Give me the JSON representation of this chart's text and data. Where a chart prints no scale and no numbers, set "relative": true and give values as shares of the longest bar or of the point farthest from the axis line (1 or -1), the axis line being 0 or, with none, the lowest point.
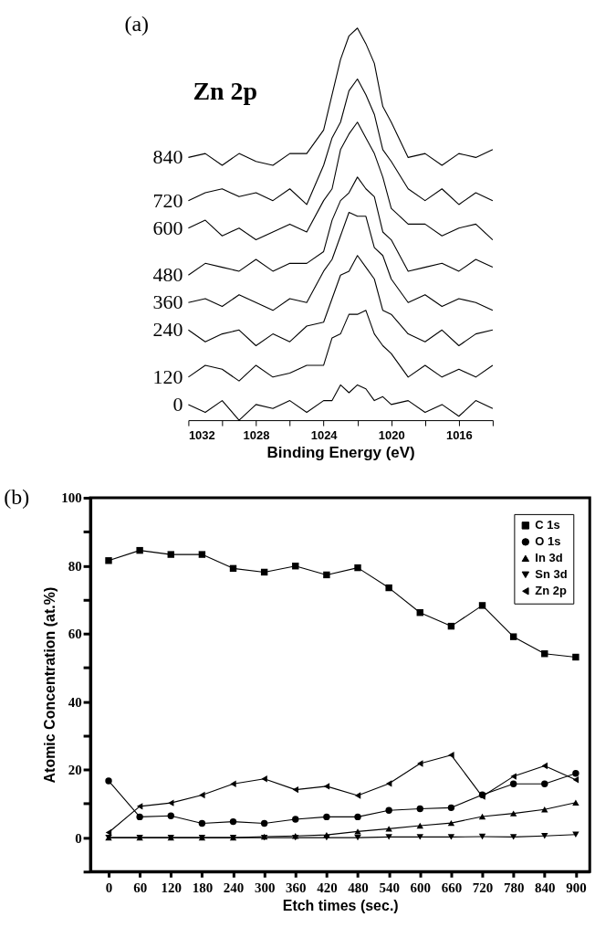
{
  "chart_data": [
    {
      "type": "line",
      "title": "(a)",
      "relative": true,
      "legend": false,
      "xlabel": "Binding Energy (eV)",
      "annotations": [
        "Zn 2p"
      ],
      "xlim": [
        1032,
        1014
      ],
      "xticks": [
        1032,
        {
          "value": 1030,
          "label": null
        },
        1028,
        {
          "value": 1026,
          "label": null
        },
        1024,
        {
          "value": 1022,
          "label": null
        },
        1020,
        {
          "value": 1018,
          "label": null
        },
        1016,
        {
          "value": 1014,
          "label": null
        }
      ],
      "x": [
        1032,
        1031,
        1030,
        1029,
        1028,
        1027,
        1026,
        1025,
        1024,
        1023.5,
        1023,
        1022.5,
        1022,
        1021.5,
        1021,
        1020.5,
        1020,
        1019,
        1018,
        1017,
        1016,
        1015,
        1014
      ],
      "series": [
        {
          "name": "0",
          "color": "#000000",
          "values": [
            0.04,
            0.02,
            0.05,
            0.0,
            0.04,
            0.03,
            0.05,
            0.02,
            0.05,
            0.05,
            0.09,
            0.07,
            0.09,
            0.08,
            0.05,
            0.06,
            0.04,
            0.05,
            0.02,
            0.04,
            0.01,
            0.05,
            0.03
          ]
        },
        {
          "name": "120",
          "color": "#000000",
          "values": [
            0.11,
            0.14,
            0.13,
            0.1,
            0.14,
            0.11,
            0.12,
            0.14,
            0.14,
            0.21,
            0.22,
            0.27,
            0.27,
            0.28,
            0.22,
            0.19,
            0.17,
            0.11,
            0.14,
            0.11,
            0.13,
            0.11,
            0.14
          ]
        },
        {
          "name": "240",
          "color": "#000000",
          "values": [
            0.23,
            0.2,
            0.22,
            0.23,
            0.19,
            0.22,
            0.2,
            0.24,
            0.25,
            0.31,
            0.37,
            0.38,
            0.42,
            0.39,
            0.36,
            0.28,
            0.27,
            0.22,
            0.2,
            0.23,
            0.19,
            0.22,
            0.23
          ]
        },
        {
          "name": "360",
          "color": "#000000",
          "values": [
            0.3,
            0.31,
            0.29,
            0.32,
            0.3,
            0.28,
            0.31,
            0.3,
            0.38,
            0.41,
            0.47,
            0.53,
            0.52,
            0.52,
            0.44,
            0.42,
            0.36,
            0.3,
            0.32,
            0.29,
            0.31,
            0.3,
            0.28
          ]
        },
        {
          "name": "480",
          "color": "#000000",
          "values": [
            0.37,
            0.4,
            0.39,
            0.38,
            0.41,
            0.38,
            0.4,
            0.4,
            0.43,
            0.51,
            0.56,
            0.58,
            0.62,
            0.59,
            0.57,
            0.48,
            0.46,
            0.38,
            0.39,
            0.4,
            0.38,
            0.41,
            0.39
          ]
        },
        {
          "name": "600",
          "color": "#000000",
          "values": [
            0.49,
            0.51,
            0.47,
            0.49,
            0.46,
            0.48,
            0.5,
            0.48,
            0.56,
            0.59,
            0.69,
            0.73,
            0.76,
            0.72,
            0.68,
            0.62,
            0.54,
            0.5,
            0.5,
            0.47,
            0.49,
            0.5,
            0.46
          ]
        },
        {
          "name": "720",
          "color": "#000000",
          "values": [
            0.56,
            0.58,
            0.59,
            0.57,
            0.58,
            0.56,
            0.59,
            0.55,
            0.65,
            0.72,
            0.76,
            0.84,
            0.87,
            0.83,
            0.78,
            0.69,
            0.66,
            0.59,
            0.56,
            0.59,
            0.55,
            0.58,
            0.56
          ]
        },
        {
          "name": "840",
          "color": "#000000",
          "values": [
            0.67,
            0.68,
            0.65,
            0.68,
            0.66,
            0.65,
            0.68,
            0.68,
            0.74,
            0.83,
            0.92,
            0.98,
            1.0,
            0.96,
            0.91,
            0.8,
            0.76,
            0.67,
            0.68,
            0.65,
            0.68,
            0.67,
            0.69
          ]
        }
      ]
    },
    {
      "type": "line",
      "title": "(b)",
      "legend": "top right",
      "grid": false,
      "xlabel": "Etch times (sec.)",
      "ylabel": "Atomic Concentration (at.%)",
      "xlim": [
        -35,
        927
      ],
      "xticks": [
        0,
        60,
        120,
        180,
        240,
        300,
        360,
        420,
        480,
        540,
        600,
        660,
        720,
        780,
        840,
        900
      ],
      "ylim": [
        -10,
        100
      ],
      "yticks": [
        {
          "value": -10,
          "label": null
        },
        0,
        {
          "value": 10,
          "label": null
        },
        20,
        {
          "value": 30,
          "label": null
        },
        40,
        {
          "value": 50,
          "label": null
        },
        60,
        {
          "value": 70,
          "label": null
        },
        80,
        {
          "value": 90,
          "label": null
        },
        100
      ],
      "x": [
        0,
        60,
        120,
        180,
        240,
        300,
        360,
        420,
        480,
        540,
        600,
        660,
        720,
        780,
        840,
        900
      ],
      "series": [
        {
          "name": "C 1s",
          "color": "#000000",
          "marker": "square",
          "values": [
            81.5,
            84.5,
            83.3,
            83.3,
            79.2,
            78.1,
            79.9,
            77.3,
            79.4,
            73.5,
            66.2,
            62.2,
            68.3,
            59.1,
            54.1,
            53.1
          ]
        },
        {
          "name": "O 1s",
          "color": "#000000",
          "marker": "circle",
          "values": [
            16.7,
            6.1,
            6.4,
            4.2,
            4.7,
            4.2,
            5.4,
            6.1,
            6.1,
            8.0,
            8.5,
            8.8,
            12.6,
            15.8,
            15.8,
            18.9
          ]
        },
        {
          "name": "In 3d",
          "color": "#000000",
          "marker": "triangle",
          "values": [
            0,
            0,
            0,
            0,
            0,
            0.3,
            0.5,
            0.8,
            1.8,
            2.6,
            3.5,
            4.3,
            6.2,
            7.1,
            8.3,
            10.3
          ]
        },
        {
          "name": "Sn 3d",
          "color": "#000000",
          "marker": "triangle-down",
          "values": [
            0,
            0,
            0,
            0,
            0,
            0,
            0,
            0,
            0,
            0.2,
            0.2,
            0.2,
            0.3,
            0.2,
            0.5,
            0.9
          ]
        },
        {
          "name": "Zn 2p",
          "color": "#000000",
          "marker": "triangle-left",
          "values": [
            1.5,
            9.2,
            10.2,
            12.5,
            15.8,
            17.3,
            14.1,
            15.1,
            12.4,
            15.9,
            21.8,
            24.3,
            12.1,
            18.0,
            21.1,
            17.0
          ]
        }
      ]
    }
  ]
}
